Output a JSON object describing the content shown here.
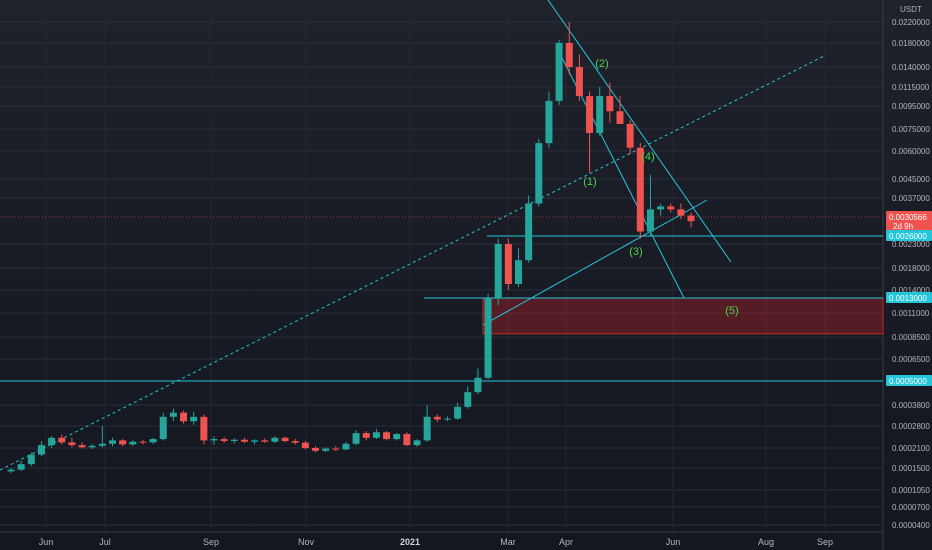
{
  "chart_data": {
    "type": "candlestick",
    "currency": "USDT",
    "price_scale": "log",
    "y_ticks": [
      "0.0220000",
      "0.0180000",
      "0.0140000",
      "0.0115000",
      "0.0095000",
      "0.0075000",
      "0.0060000",
      "0.0045000",
      "0.0037000",
      "0.0023000",
      "0.0018000",
      "0.0014000",
      "0.0011000",
      "0.0008500",
      "0.0006500",
      "0.0003800",
      "0.0002800",
      "0.0002100",
      "0.0001500",
      "0.0001050",
      "0.0000700",
      "0.0000400"
    ],
    "x_ticks": [
      "Jun",
      "Jul",
      "Sep",
      "Nov",
      "2021",
      "Mar",
      "Apr",
      "Jun",
      "Aug",
      "Sep"
    ],
    "price_tags": [
      {
        "value": "0.0030566",
        "sub": "2d 9h",
        "color": "#ef5350"
      },
      {
        "value": "0.0026000",
        "color": "#26c6da"
      },
      {
        "value": "0.0013000",
        "color": "#26c6da"
      },
      {
        "value": "0.0005000",
        "color": "#26c6da"
      }
    ],
    "wave_labels": [
      "(1)",
      "(2)",
      "(3)",
      "(4)",
      "(5)"
    ],
    "candle_colors": {
      "up": "#26a69a",
      "down": "#ef5350"
    },
    "candles": [
      {
        "o": 0.000142,
        "h": 0.00015,
        "l": 0.000138,
        "c": 0.000146
      },
      {
        "o": 0.000146,
        "h": 0.00017,
        "l": 0.000143,
        "c": 0.00016
      },
      {
        "o": 0.00016,
        "h": 0.000195,
        "l": 0.000155,
        "c": 0.000188
      },
      {
        "o": 0.000188,
        "h": 0.00023,
        "l": 0.000183,
        "c": 0.000218
      },
      {
        "o": 0.000218,
        "h": 0.000245,
        "l": 0.00021,
        "c": 0.00024
      },
      {
        "o": 0.00024,
        "h": 0.00025,
        "l": 0.00022,
        "c": 0.000226
      },
      {
        "o": 0.000226,
        "h": 0.00024,
        "l": 0.000212,
        "c": 0.000218
      },
      {
        "o": 0.000218,
        "h": 0.000226,
        "l": 0.000208,
        "c": 0.000212
      },
      {
        "o": 0.000212,
        "h": 0.000222,
        "l": 0.000206,
        "c": 0.000216
      },
      {
        "o": 0.000216,
        "h": 0.00028,
        "l": 0.000212,
        "c": 0.000222
      },
      {
        "o": 0.000222,
        "h": 0.00024,
        "l": 0.000215,
        "c": 0.000232
      },
      {
        "o": 0.000232,
        "h": 0.000236,
        "l": 0.000215,
        "c": 0.00022
      },
      {
        "o": 0.00022,
        "h": 0.000232,
        "l": 0.000216,
        "c": 0.000228
      },
      {
        "o": 0.000228,
        "h": 0.000234,
        "l": 0.00022,
        "c": 0.000226
      },
      {
        "o": 0.000226,
        "h": 0.00024,
        "l": 0.000222,
        "c": 0.000236
      },
      {
        "o": 0.000236,
        "h": 0.00034,
        "l": 0.000232,
        "c": 0.00032
      },
      {
        "o": 0.00032,
        "h": 0.00036,
        "l": 0.0003,
        "c": 0.00034
      },
      {
        "o": 0.00034,
        "h": 0.00035,
        "l": 0.00029,
        "c": 0.0003
      },
      {
        "o": 0.0003,
        "h": 0.000345,
        "l": 0.000285,
        "c": 0.00032
      },
      {
        "o": 0.00032,
        "h": 0.00033,
        "l": 0.00022,
        "c": 0.000232
      },
      {
        "o": 0.000232,
        "h": 0.000245,
        "l": 0.00022,
        "c": 0.000236
      },
      {
        "o": 0.000236,
        "h": 0.000242,
        "l": 0.000225,
        "c": 0.00023
      },
      {
        "o": 0.00023,
        "h": 0.000238,
        "l": 0.000222,
        "c": 0.000234
      },
      {
        "o": 0.000234,
        "h": 0.00024,
        "l": 0.000224,
        "c": 0.000228
      },
      {
        "o": 0.000228,
        "h": 0.000236,
        "l": 0.00022,
        "c": 0.000232
      },
      {
        "o": 0.000232,
        "h": 0.000238,
        "l": 0.000224,
        "c": 0.000228
      },
      {
        "o": 0.000228,
        "h": 0.000245,
        "l": 0.000224,
        "c": 0.00024
      },
      {
        "o": 0.00024,
        "h": 0.000244,
        "l": 0.000226,
        "c": 0.00023
      },
      {
        "o": 0.00023,
        "h": 0.000236,
        "l": 0.00022,
        "c": 0.000225
      },
      {
        "o": 0.000225,
        "h": 0.00023,
        "l": 0.000205,
        "c": 0.00021
      },
      {
        "o": 0.00021,
        "h": 0.000215,
        "l": 0.000195,
        "c": 0.0002
      },
      {
        "o": 0.0002,
        "h": 0.000212,
        "l": 0.000196,
        "c": 0.000208
      },
      {
        "o": 0.000208,
        "h": 0.000215,
        "l": 0.0002,
        "c": 0.000205
      },
      {
        "o": 0.000205,
        "h": 0.000228,
        "l": 0.000202,
        "c": 0.000222
      },
      {
        "o": 0.000222,
        "h": 0.000265,
        "l": 0.000218,
        "c": 0.000255
      },
      {
        "o": 0.000255,
        "h": 0.000262,
        "l": 0.000232,
        "c": 0.00024
      },
      {
        "o": 0.00024,
        "h": 0.00027,
        "l": 0.000236,
        "c": 0.000258
      },
      {
        "o": 0.000258,
        "h": 0.000262,
        "l": 0.000232,
        "c": 0.000236
      },
      {
        "o": 0.000236,
        "h": 0.000256,
        "l": 0.000232,
        "c": 0.000252
      },
      {
        "o": 0.000252,
        "h": 0.000258,
        "l": 0.000215,
        "c": 0.000218
      },
      {
        "o": 0.000218,
        "h": 0.000236,
        "l": 0.000214,
        "c": 0.000232
      },
      {
        "o": 0.000232,
        "h": 0.00038,
        "l": 0.000228,
        "c": 0.00032
      },
      {
        "o": 0.00032,
        "h": 0.000332,
        "l": 0.000296,
        "c": 0.000308
      },
      {
        "o": 0.000308,
        "h": 0.000322,
        "l": 0.0003,
        "c": 0.000312
      },
      {
        "o": 0.000312,
        "h": 0.00039,
        "l": 0.000306,
        "c": 0.00037
      },
      {
        "o": 0.00037,
        "h": 0.00047,
        "l": 0.00036,
        "c": 0.00044
      },
      {
        "o": 0.00044,
        "h": 0.00058,
        "l": 0.00043,
        "c": 0.00052
      },
      {
        "o": 0.00052,
        "h": 0.00135,
        "l": 0.00051,
        "c": 0.0013
      },
      {
        "o": 0.0013,
        "h": 0.0025,
        "l": 0.0012,
        "c": 0.0023
      },
      {
        "o": 0.0023,
        "h": 0.0025,
        "l": 0.0014,
        "c": 0.0015
      },
      {
        "o": 0.0015,
        "h": 0.0022,
        "l": 0.00145,
        "c": 0.00195
      },
      {
        "o": 0.00195,
        "h": 0.0038,
        "l": 0.0019,
        "c": 0.0035
      },
      {
        "o": 0.0035,
        "h": 0.0068,
        "l": 0.0034,
        "c": 0.0065
      },
      {
        "o": 0.0065,
        "h": 0.011,
        "l": 0.0062,
        "c": 0.01
      },
      {
        "o": 0.01,
        "h": 0.0185,
        "l": 0.0096,
        "c": 0.018
      },
      {
        "o": 0.018,
        "h": 0.022,
        "l": 0.013,
        "c": 0.014
      },
      {
        "o": 0.014,
        "h": 0.016,
        "l": 0.01,
        "c": 0.0105
      },
      {
        "o": 0.0105,
        "h": 0.011,
        "l": 0.0048,
        "c": 0.0072
      },
      {
        "o": 0.0072,
        "h": 0.0115,
        "l": 0.007,
        "c": 0.0105
      },
      {
        "o": 0.0105,
        "h": 0.012,
        "l": 0.008,
        "c": 0.009
      },
      {
        "o": 0.009,
        "h": 0.0105,
        "l": 0.008,
        "c": 0.0079
      },
      {
        "o": 0.0079,
        "h": 0.0082,
        "l": 0.0058,
        "c": 0.0062
      },
      {
        "o": 0.0062,
        "h": 0.0065,
        "l": 0.0025,
        "c": 0.0027
      },
      {
        "o": 0.0027,
        "h": 0.0047,
        "l": 0.0026,
        "c": 0.0033
      },
      {
        "o": 0.0033,
        "h": 0.0035,
        "l": 0.0031,
        "c": 0.0034
      },
      {
        "o": 0.0034,
        "h": 0.0035,
        "l": 0.0032,
        "c": 0.0033
      },
      {
        "o": 0.0033,
        "h": 0.0035,
        "l": 0.003,
        "c": 0.0031
      },
      {
        "o": 0.0031,
        "h": 0.0032,
        "l": 0.0028,
        "c": 0.00295
      }
    ]
  }
}
